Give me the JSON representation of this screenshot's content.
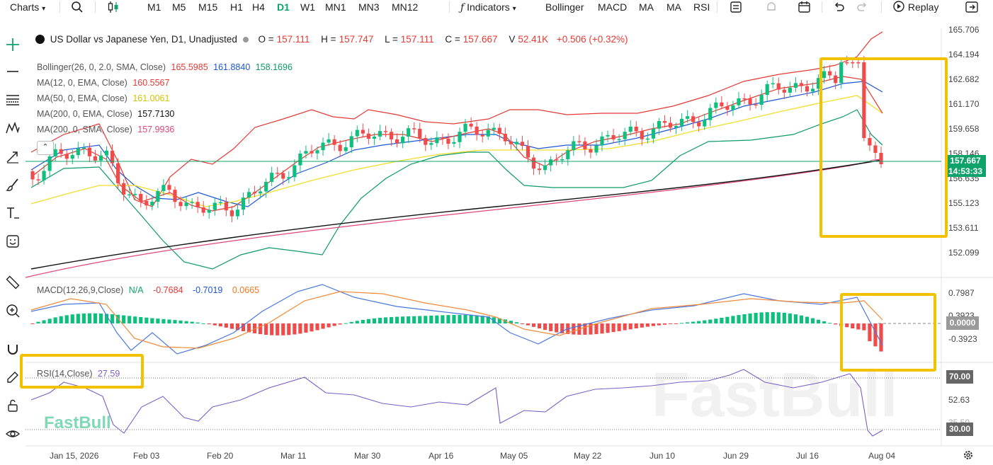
{
  "toolbar": {
    "charts_label": "Charts",
    "timeframes": [
      "M1",
      "M5",
      "M15",
      "H1",
      "H4",
      "D1",
      "W1",
      "MN1",
      "MN3",
      "MN12"
    ],
    "active_timeframe": "D1",
    "indicators_label": "Indicators",
    "quick_indicators": [
      "Bollinger",
      "MACD",
      "MA",
      "MA",
      "RSI"
    ],
    "replay_label": "Replay"
  },
  "header": {
    "symbol_title": "US Dollar vs Japanese Yen, D1, Unadjusted",
    "open_label": "O =",
    "open": "157.111",
    "high_label": "H =",
    "high": "157.747",
    "low_label": "L =",
    "low": "157.111",
    "close_label": "C =",
    "close": "157.667",
    "volume_label": "V",
    "volume": "52.41K",
    "change": "+0.506 (+0.32%)"
  },
  "indicators": [
    {
      "label": "Bollinger(26, 0, 2.0, SMA, Close)",
      "values": [
        "165.5985",
        "161.8840",
        "158.1696"
      ],
      "colors": [
        "#e53935",
        "#1e56d8",
        "#0d9a66"
      ]
    },
    {
      "label": "MA(12, 0, EMA, Close)",
      "values": [
        "160.5567"
      ],
      "colors": [
        "#e53935"
      ]
    },
    {
      "label": "MA(50, 0, EMA, Close)",
      "values": [
        "161.0061"
      ],
      "colors": [
        "#e8d000"
      ]
    },
    {
      "label": "MA(200, 0, EMA, Close)",
      "values": [
        "157.7130"
      ],
      "colors": [
        "#111111"
      ]
    },
    {
      "label": "MA(200, 0, SMA, Close)",
      "values": [
        "157.9936"
      ],
      "colors": [
        "#e0457b"
      ]
    }
  ],
  "macd": {
    "label": "MACD(12,26,9,Close)",
    "na": "N/A",
    "v1": "-0.7684",
    "v2": "-0.7019",
    "v3": "0.0665"
  },
  "rsi": {
    "label": "RSI(14,Close)",
    "value": "27.59"
  },
  "price_axis": [
    "165.706",
    "164.194",
    "162.682",
    "161.170",
    "159.658",
    "158.146",
    "156.635",
    "155.123",
    "153.611",
    "152.099"
  ],
  "current_price": "157.667",
  "countdown": "14:53:33",
  "macd_axis": [
    "0.7987",
    "0.3923",
    "0.0000",
    "-0.3923"
  ],
  "rsi_axis": [
    "70.00",
    "52.63",
    "35.50",
    "30.00"
  ],
  "time_axis": [
    "Jan 15, 2026",
    "Feb 03",
    "Feb 20",
    "Mar 11",
    "Mar 30",
    "Apr 16",
    "May 05",
    "May 22",
    "Jun 10",
    "Jun 29",
    "Jul 16",
    "Aug 04"
  ],
  "watermark": "FastBull",
  "colors": {
    "up": "#0fbf7e",
    "down": "#ef4b4b",
    "accent": "#0fa36b",
    "highlight": "#f2c200"
  }
}
